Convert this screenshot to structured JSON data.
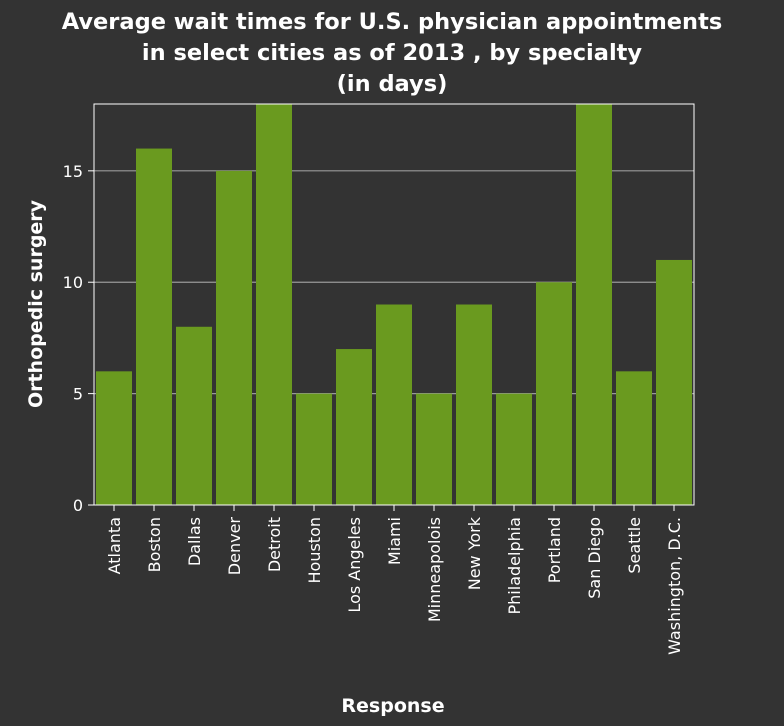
{
  "chart_data": {
    "type": "bar",
    "title": [
      "Average wait times for U.S. physician appointments",
      "in select cities as of 2013 , by specialty",
      "(in days)"
    ],
    "xlabel": "Response",
    "ylabel": "Orthopedic surgery",
    "categories": [
      "Atlanta",
      "Boston",
      "Dallas",
      "Denver",
      "Detroit",
      "Houston",
      "Los Angeles",
      "Miami",
      "Minneapolois",
      "New York",
      "Philadelphia",
      "Portland",
      "San Diego",
      "Seattle",
      "Washington, D.C."
    ],
    "values": [
      6,
      16,
      8,
      15,
      18,
      5,
      7,
      9,
      5,
      9,
      5,
      10,
      18,
      6,
      11
    ],
    "ylim": [
      0,
      18
    ],
    "yticks": [
      0,
      5,
      10,
      15
    ],
    "grid": true,
    "bar_color": "#6a9a1f",
    "background_color": "#333333",
    "grid_color": "#9a9a9a"
  }
}
